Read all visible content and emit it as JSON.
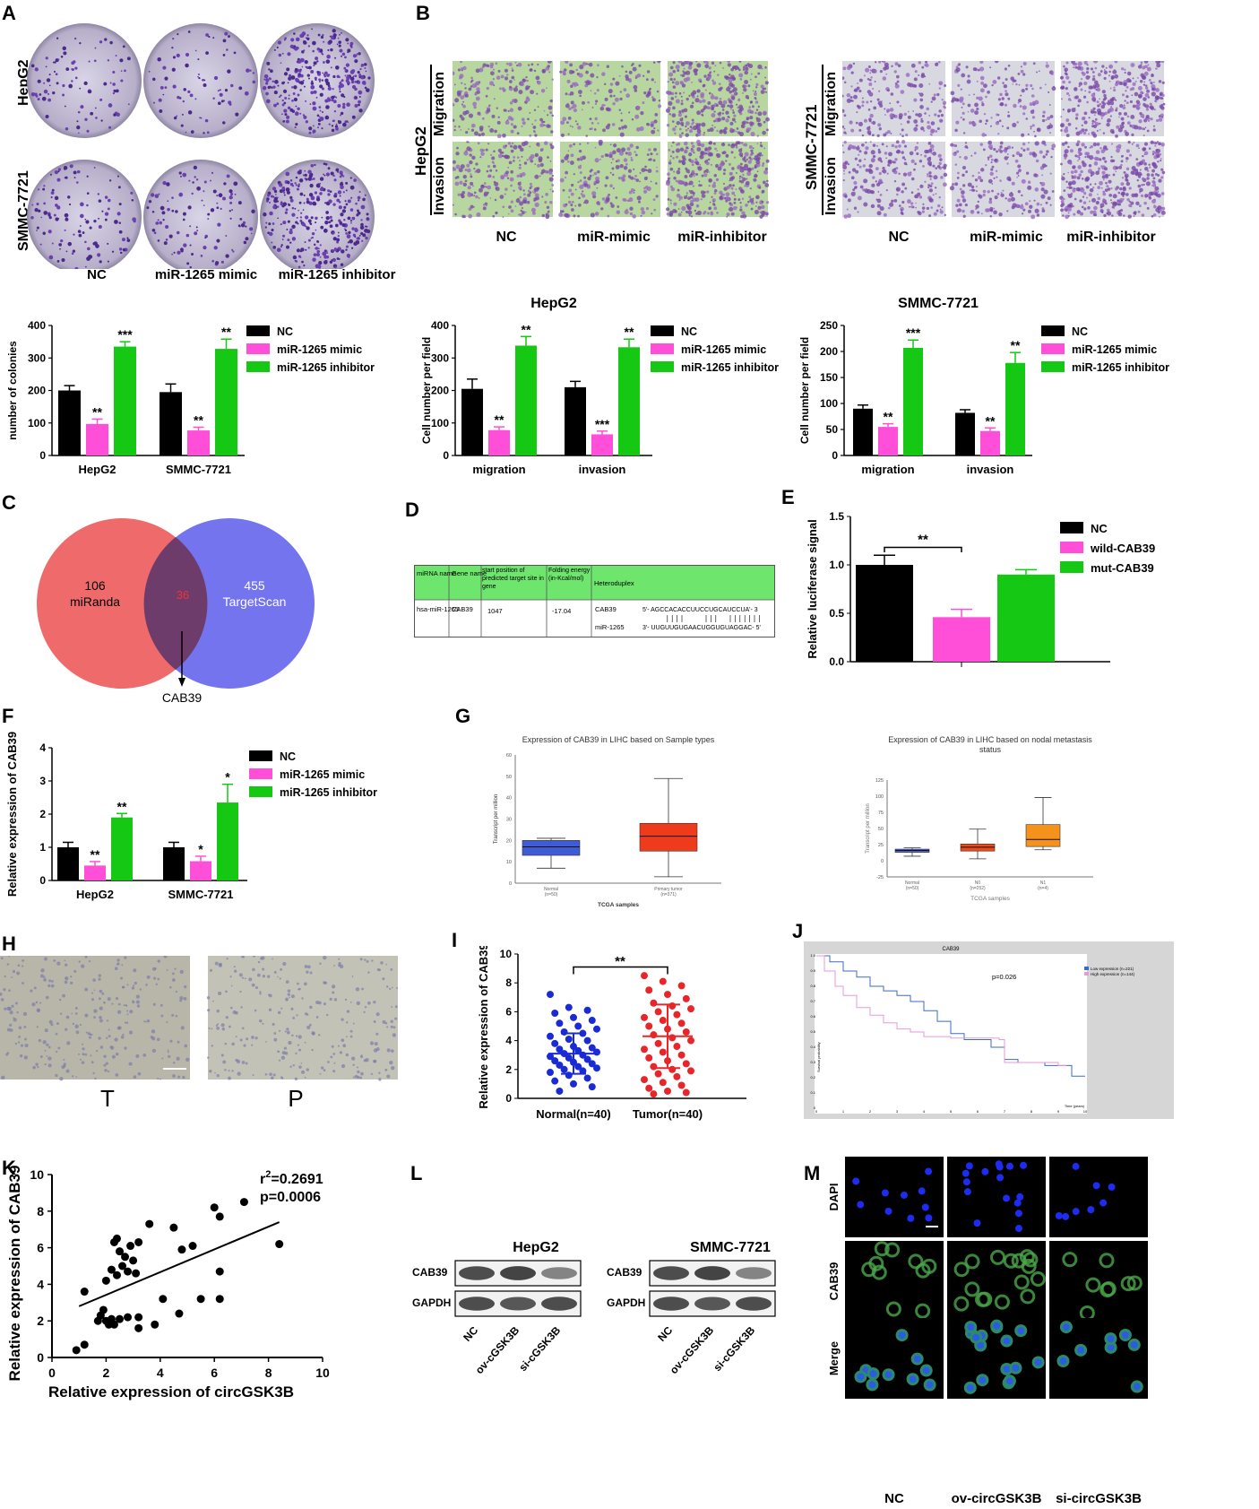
{
  "panels": {
    "A": "A",
    "B": "B",
    "C": "C",
    "D": "D",
    "E": "E",
    "F": "F",
    "G": "G",
    "H": "H",
    "I": "I",
    "J": "J",
    "K": "K",
    "L": "L",
    "M": "M"
  },
  "panelA": {
    "rows": [
      "HepG2",
      "SMMC-7721"
    ],
    "cols": [
      "NC",
      "miR-1265 mimic",
      "miR-1265 inhibitor"
    ]
  },
  "panelB": {
    "hepg2_label": "HepG2",
    "smmc_label": "SMMC-7721",
    "rows": [
      "Migration",
      "Invasion"
    ],
    "cols": [
      "NC",
      "miR-mimic",
      "miR-inhibitor"
    ]
  },
  "colors": {
    "nc": "#000000",
    "mimic": "#ff4fd8",
    "inhibitor": "#14c814",
    "venn_left": "#ef6b6b",
    "venn_right": "#7070ee",
    "venn_mid": "#6e3e6e",
    "normal": "#1a2bd6",
    "tumor": "#e8262a"
  },
  "chart_data": [
    {
      "id": "A-bar",
      "type": "bar",
      "ylabel": "number of colonies",
      "ylim": [
        0,
        400
      ],
      "yticks": [
        0,
        100,
        200,
        300,
        400
      ],
      "categories": [
        "HepG2",
        "SMMC-7721"
      ],
      "legend": [
        "NC",
        "miR-1265 mimic",
        "miR-1265 inhibitor"
      ],
      "series": [
        {
          "name": "NC",
          "values": [
            200,
            195
          ],
          "err": [
            15,
            25
          ],
          "sig": [
            "",
            ""
          ]
        },
        {
          "name": "miR-1265 mimic",
          "values": [
            97,
            77
          ],
          "err": [
            15,
            10
          ],
          "sig": [
            "**",
            "**"
          ]
        },
        {
          "name": "miR-1265 inhibitor",
          "values": [
            335,
            328
          ],
          "err": [
            15,
            30
          ],
          "sig": [
            "***",
            "**"
          ]
        }
      ]
    },
    {
      "id": "B-hepg2",
      "type": "bar",
      "title": "HepG2",
      "ylabel": "Cell number per field",
      "ylim": [
        0,
        400
      ],
      "yticks": [
        0,
        100,
        200,
        300,
        400
      ],
      "categories": [
        "migration",
        "invasion"
      ],
      "legend": [
        "NC",
        "miR-1265 mimic",
        "miR-1265 inhibitor"
      ],
      "series": [
        {
          "name": "NC",
          "values": [
            205,
            210
          ],
          "err": [
            30,
            18
          ],
          "sig": [
            "",
            ""
          ]
        },
        {
          "name": "miR-1265 mimic",
          "values": [
            78,
            65
          ],
          "err": [
            10,
            10
          ],
          "sig": [
            "**",
            "***"
          ]
        },
        {
          "name": "miR-1265 inhibitor",
          "values": [
            338,
            333
          ],
          "err": [
            28,
            25
          ],
          "sig": [
            "**",
            "**"
          ]
        }
      ]
    },
    {
      "id": "B-smmc",
      "type": "bar",
      "title": "SMMC-7721",
      "ylabel": "Cell number per field",
      "ylim": [
        0,
        250
      ],
      "yticks": [
        0,
        50,
        100,
        150,
        200,
        250
      ],
      "categories": [
        "migration",
        "invasion"
      ],
      "legend": [
        "NC",
        "miR-1265 mimic",
        "miR-1265 inhibitor"
      ],
      "series": [
        {
          "name": "NC",
          "values": [
            90,
            82
          ],
          "err": [
            7,
            6
          ],
          "sig": [
            "",
            ""
          ]
        },
        {
          "name": "miR-1265 mimic",
          "values": [
            55,
            47
          ],
          "err": [
            6,
            6
          ],
          "sig": [
            "**",
            "**"
          ]
        },
        {
          "name": "miR-1265 inhibitor",
          "values": [
            207,
            178
          ],
          "err": [
            15,
            20
          ],
          "sig": [
            "***",
            "**"
          ]
        }
      ]
    },
    {
      "id": "E-bar",
      "type": "bar",
      "ylabel": "Relative luciferase signal",
      "ylim": [
        0,
        1.5
      ],
      "yticks": [
        "0.0",
        "0.5",
        "1.0",
        "1.5"
      ],
      "legend": [
        "NC",
        "wild-CAB39",
        "mut-CAB39"
      ],
      "values": [
        1.0,
        0.46,
        0.9
      ],
      "err": [
        0.1,
        0.08,
        0.05
      ],
      "sig": "**"
    },
    {
      "id": "F-bar",
      "type": "bar",
      "ylabel": "Relative expression of CAB39",
      "ylim": [
        0,
        4
      ],
      "yticks": [
        0,
        1,
        2,
        3,
        4
      ],
      "categories": [
        "HepG2",
        "SMMC-7721"
      ],
      "legend": [
        "NC",
        "miR-1265 mimic",
        "miR-1265 inhibitor"
      ],
      "series": [
        {
          "name": "NC",
          "values": [
            1.0,
            1.0
          ],
          "err": [
            0.15,
            0.15
          ],
          "sig": [
            "",
            ""
          ]
        },
        {
          "name": "miR-1265 mimic",
          "values": [
            0.45,
            0.58
          ],
          "err": [
            0.12,
            0.15
          ],
          "sig": [
            "**",
            "*"
          ]
        },
        {
          "name": "miR-1265 inhibitor",
          "values": [
            1.9,
            2.35
          ],
          "err": [
            0.12,
            0.55
          ],
          "sig": [
            "**",
            "*"
          ]
        }
      ]
    },
    {
      "id": "I-scatter",
      "type": "scatter",
      "ylabel": "Relative expression of CAB39",
      "ylim": [
        0,
        10
      ],
      "yticks": [
        0,
        2,
        4,
        6,
        8,
        10
      ],
      "categories": [
        "Normal(n=40)",
        "Tumor(n=40)"
      ],
      "normal_mean": 3.1,
      "normal_sd": 1.4,
      "tumor_mean": 4.3,
      "tumor_sd": 2.2,
      "sig": "**",
      "normal": [
        7.2,
        6.3,
        6.1,
        5.9,
        5.6,
        5.4,
        5.2,
        5.0,
        4.8,
        4.6,
        4.5,
        4.3,
        4.1,
        4.0,
        3.8,
        3.6,
        3.5,
        3.4,
        3.3,
        3.2,
        3.1,
        3.0,
        2.9,
        2.8,
        2.7,
        2.6,
        2.5,
        2.4,
        2.3,
        2.2,
        2.1,
        2.0,
        1.9,
        1.8,
        1.6,
        1.4,
        1.2,
        1.0,
        0.8,
        0.5
      ],
      "tumor": [
        8.5,
        8.1,
        7.8,
        7.5,
        7.2,
        6.9,
        6.6,
        6.4,
        6.2,
        6.0,
        5.8,
        5.6,
        5.4,
        5.2,
        5.0,
        4.8,
        4.6,
        4.4,
        4.2,
        4.0,
        3.8,
        3.6,
        3.4,
        3.2,
        3.0,
        2.8,
        2.6,
        2.4,
        2.2,
        2.0,
        1.9,
        1.7,
        1.5,
        1.3,
        1.1,
        0.9,
        0.7,
        0.5,
        0.4,
        0.3
      ]
    },
    {
      "id": "K-scatter",
      "type": "scatter",
      "xlabel": "Relative expression of circGSK3B",
      "ylabel": "Relative expression of CAB39",
      "xlim": [
        0,
        10
      ],
      "ylim": [
        0,
        10
      ],
      "xticks": [
        0,
        2,
        4,
        6,
        8,
        10
      ],
      "yticks": [
        0,
        2,
        4,
        6,
        8,
        10
      ],
      "r2": "r",
      "r2_sup": "2",
      "r2_val": "=0.2691",
      "p": "p=0.0006",
      "fit": {
        "x0": 1.0,
        "y0": 2.8,
        "x1": 8.4,
        "y1": 7.4
      },
      "points": [
        [
          0.9,
          0.4
        ],
        [
          1.2,
          0.7
        ],
        [
          1.2,
          3.6
        ],
        [
          1.7,
          2.0
        ],
        [
          1.8,
          2.3
        ],
        [
          1.9,
          2.6
        ],
        [
          2.0,
          2.0
        ],
        [
          2.1,
          1.8
        ],
        [
          2.2,
          2.1
        ],
        [
          2.3,
          1.8
        ],
        [
          2.0,
          4.2
        ],
        [
          2.2,
          4.8
        ],
        [
          2.3,
          6.3
        ],
        [
          2.4,
          6.5
        ],
        [
          2.4,
          4.5
        ],
        [
          2.5,
          5.8
        ],
        [
          2.6,
          5.0
        ],
        [
          2.7,
          5.5
        ],
        [
          2.8,
          4.7
        ],
        [
          2.9,
          6.1
        ],
        [
          3.0,
          5.3
        ],
        [
          3.1,
          4.6
        ],
        [
          3.2,
          6.3
        ],
        [
          2.5,
          2.1
        ],
        [
          2.8,
          2.2
        ],
        [
          3.2,
          2.2
        ],
        [
          3.2,
          1.6
        ],
        [
          3.6,
          7.3
        ],
        [
          3.8,
          1.8
        ],
        [
          4.1,
          3.2
        ],
        [
          4.5,
          7.1
        ],
        [
          4.7,
          2.4
        ],
        [
          4.8,
          5.9
        ],
        [
          5.2,
          6.1
        ],
        [
          5.5,
          3.2
        ],
        [
          6.0,
          8.2
        ],
        [
          6.2,
          7.7
        ],
        [
          6.2,
          4.7
        ],
        [
          6.2,
          3.2
        ],
        [
          7.1,
          8.5
        ],
        [
          8.4,
          6.2
        ]
      ]
    },
    {
      "id": "G-box1",
      "type": "box",
      "title": "Expression of CAB39 in LIHC based on Sample types",
      "ylabel": "Transcript per million",
      "xlabel": "TCGA samples",
      "yticks": [
        "0",
        "10",
        "20",
        "30",
        "40",
        "50",
        "60"
      ],
      "groups": [
        {
          "name": "Normal",
          "n": "(n=50)",
          "q1": 13,
          "med": 17,
          "q3": 20,
          "lo": 7,
          "hi": 21
        },
        {
          "name": "Primary tumor",
          "n": "(n=371)",
          "q1": 15,
          "med": 22,
          "q3": 28,
          "lo": 3,
          "hi": 49
        }
      ]
    },
    {
      "id": "G-box2",
      "type": "box",
      "title": "Expression of CAB39 in LIHC based on nodal metastasis",
      "title2": "status",
      "ylabel": "Transcript per million",
      "xlabel": "TCGA samples",
      "yticks": [
        "-25",
        "0",
        "25",
        "50",
        "75",
        "100",
        "125"
      ],
      "groups": [
        {
          "name": "Normal",
          "n": "(n=50)",
          "q1": 13,
          "med": 16,
          "q3": 18,
          "lo": 7,
          "hi": 20
        },
        {
          "name": "N0",
          "n": "(n=252)",
          "q1": 15,
          "med": 21,
          "q3": 26,
          "lo": 3,
          "hi": 49
        },
        {
          "name": "N1",
          "n": "(n=4)",
          "q1": 22,
          "med": 33,
          "q3": 56,
          "lo": 17,
          "hi": 98
        }
      ]
    },
    {
      "id": "J-km",
      "type": "line",
      "title": "CAB39",
      "p": "p=0.026",
      "legend": [
        "Low expression (n=221)",
        "High expression (n=144)"
      ],
      "xlabel": "Time (years)",
      "ylabel": "Survival probability",
      "xticks": [
        "0",
        "1",
        "2",
        "3",
        "4",
        "5",
        "6",
        "7",
        "8",
        "9",
        "10"
      ],
      "yticks": [
        "0",
        "0.1",
        "0.2",
        "0.3",
        "0.4",
        "0.5",
        "0.6",
        "0.7",
        "0.8",
        "0.9",
        "1.0"
      ]
    }
  ],
  "venn": {
    "left_count": "106",
    "left_name": "miRanda",
    "mid_count": "36",
    "right_count": "455",
    "right_name": "TargetScan",
    "arrow_label": "CAB39"
  },
  "table": {
    "headers": [
      "miRNA name",
      "Gene name",
      "start position of predicted target site in gene",
      "Folding energy (in-Kcal/mol)",
      "Heteroduplex"
    ],
    "row": {
      "mirna": "hsa-miR-1265",
      "gene": "CAB39",
      "start": "1047",
      "energy": "-17.04",
      "g1": "CAB39",
      "s1": "5'- AGCCACACCUUCCUGCAUCCUA'- 3",
      "g2": "miR-1265",
      "s2": "3'- UUGUUGUGAACUGGUGUAGGAC- 5'"
    }
  },
  "panelH": {
    "left": "T",
    "right": "P"
  },
  "panelL": {
    "hepg2": "HepG2",
    "smmc": "SMMC-7721",
    "bands": [
      "CAB39",
      "GAPDH"
    ],
    "lanes": [
      "NC",
      "ov-cGSK3B",
      "si-cGSK3B"
    ]
  },
  "panelM": {
    "rows": [
      "DAPI",
      "CAB39",
      "Merge"
    ],
    "cols": [
      "NC",
      "ov-circGSK3B",
      "si-circGSK3B"
    ]
  }
}
